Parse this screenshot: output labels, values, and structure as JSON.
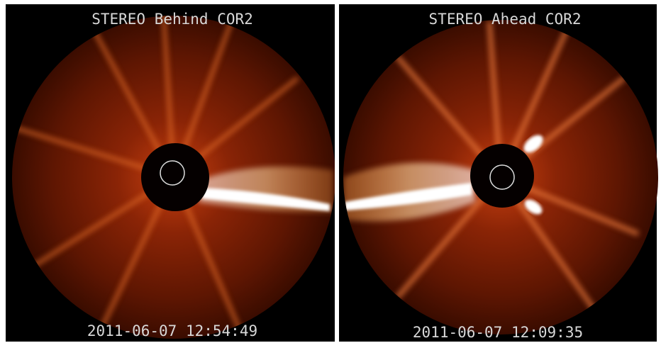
{
  "panels": [
    {
      "title": "STEREO Behind COR2",
      "timestamp": "2011-06-07 12:54:49"
    },
    {
      "title": "STEREO Ahead COR2",
      "timestamp": "2011-06-07 12:09:35"
    }
  ]
}
